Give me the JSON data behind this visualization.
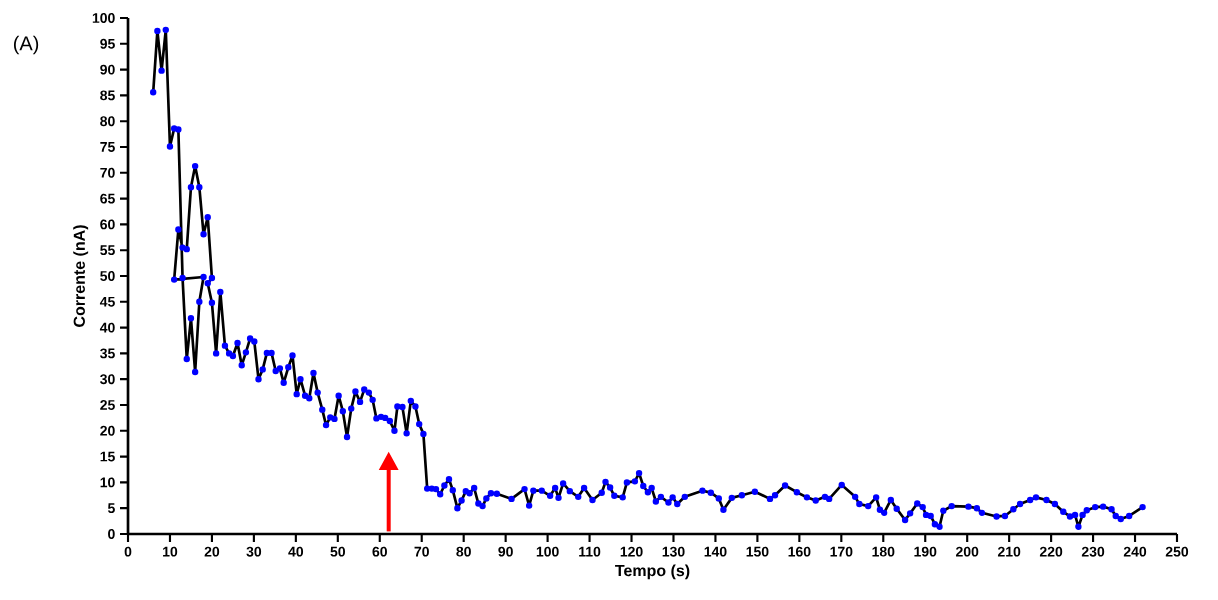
{
  "chart_data": {
    "type": "line",
    "xlabel": "Tempo (s)",
    "ylabel": "Corrente (nA)",
    "annotations": [
      "(A)"
    ],
    "xlim": [
      0,
      250
    ],
    "ylim": [
      0,
      100
    ],
    "xticks": [
      0,
      10,
      20,
      30,
      40,
      50,
      60,
      70,
      80,
      90,
      100,
      110,
      120,
      130,
      140,
      150,
      160,
      170,
      180,
      190,
      200,
      210,
      220,
      230,
      240,
      250
    ],
    "yticks": [
      0,
      5,
      10,
      15,
      20,
      25,
      30,
      35,
      40,
      45,
      50,
      55,
      60,
      65,
      70,
      75,
      80,
      85,
      90,
      95,
      100
    ],
    "marker": "circle",
    "line_style": "solid",
    "series": [
      {
        "color": "#0000ff",
        "x": [
          6,
          7,
          8,
          9,
          10,
          11,
          12,
          13,
          14,
          15,
          16,
          17,
          18,
          11,
          12,
          13,
          14,
          15,
          16,
          17,
          18,
          19,
          20,
          19,
          20,
          21,
          22,
          23.1,
          24.1,
          25,
          26.1,
          27.1,
          28.1,
          29.1,
          30.1,
          31.1,
          32.1,
          33.1,
          34.2,
          35.2,
          36.2,
          37.1,
          38.2,
          39.2,
          40.2,
          41.1,
          42.2,
          43.2,
          44.2,
          45.2,
          46.3,
          47.2,
          48.2,
          49.2,
          50.2,
          51.2,
          52.2,
          53.2,
          54.2,
          55.3,
          56.3,
          57.4,
          58.3,
          59.2,
          60.3,
          61.3,
          62.4,
          63.5,
          64.2,
          65.4,
          66.4,
          67.4,
          68.5,
          69.4,
          70.4,
          71.3,
          72.4,
          73.4,
          74.4,
          75.4,
          76.5,
          77.4,
          78.5,
          79.5,
          80.5,
          81.4,
          82.5,
          83.5,
          84.5,
          85.4,
          86.5,
          87.9,
          91.4,
          94.5,
          95.6,
          96.6,
          98.6,
          100.6,
          101.8,
          102.6,
          103.7,
          105.3,
          107.3,
          108.7,
          110.7,
          112.9,
          113.8,
          114.9,
          115.9,
          117.9,
          118.9,
          120.8,
          121.8,
          122.8,
          123.9,
          124.8,
          125.8,
          127,
          128.8,
          129.8,
          130.9,
          132.7,
          136.9,
          138.9,
          140.8,
          141.9,
          143.9,
          146.3,
          149.4,
          153,
          154.2,
          156.6,
          159.4,
          161.8,
          163.9,
          166.1,
          167.1,
          170.1,
          173.3,
          174.3,
          176.4,
          178.3,
          179.2,
          180.2,
          181.8,
          183.2,
          185.2,
          186.4,
          188.1,
          189.4,
          190.2,
          191.3,
          192.3,
          193.4,
          194.3,
          196.3,
          200.3,
          202.3,
          203.5,
          207,
          209,
          211,
          212.6,
          215,
          216.4,
          218.9,
          220.9,
          222.9,
          224.5,
          225.7,
          226.5,
          227.5,
          228.5,
          230.5,
          232.4,
          234.4,
          235.4,
          236.6,
          238.6,
          241.8
        ],
        "values": [
          85.6,
          97.5,
          89.8,
          97.7,
          75.1,
          78.6,
          78.4,
          49.6,
          33.9,
          41.8,
          31.4,
          45,
          49.8,
          49.3,
          59,
          55.5,
          55.2,
          67.2,
          71.3,
          67.2,
          58.1,
          61.4,
          49.6,
          48.6,
          44.8,
          35,
          46.9,
          36.5,
          35,
          34.5,
          37,
          32.7,
          35.2,
          37.9,
          37.3,
          30,
          31.9,
          35.1,
          35.1,
          31.6,
          32.1,
          29.3,
          32.3,
          34.6,
          27.1,
          30,
          26.8,
          26.3,
          31.2,
          27.4,
          24.1,
          21.1,
          22.6,
          22.3,
          26.8,
          23.8,
          18.8,
          24.3,
          27.6,
          25.6,
          28,
          27.4,
          26,
          22.4,
          22.7,
          22.5,
          21.9,
          20,
          24.7,
          24.6,
          19.5,
          25.8,
          24.7,
          21.3,
          19.4,
          8.8,
          8.8,
          8.7,
          7.7,
          9.4,
          10.6,
          8.5,
          5,
          6.5,
          8.3,
          7.9,
          8.9,
          5.9,
          5.4,
          6.9,
          7.9,
          7.8,
          6.8,
          8.7,
          5.5,
          8.4,
          8.4,
          7.4,
          8.9,
          7,
          9.8,
          8.3,
          7.2,
          8.9,
          6.6,
          8,
          10.1,
          9,
          7.4,
          7.1,
          10,
          10.2,
          11.8,
          9.3,
          8.1,
          8.9,
          6.3,
          7.2,
          6.1,
          7.1,
          5.8,
          7.2,
          8.4,
          8,
          6.9,
          4.7,
          7,
          7.5,
          8.2,
          6.8,
          7.5,
          9.4,
          8.1,
          7.1,
          6.5,
          7.2,
          6.8,
          9.5,
          7.2,
          5.8,
          5.4,
          7.1,
          4.7,
          4.1,
          6.6,
          4.9,
          2.7,
          4,
          5.9,
          5.2,
          3.7,
          3.5,
          1.9,
          1.4,
          4.5,
          5.4,
          5.3,
          5,
          4.1,
          3.4,
          3.5,
          4.8,
          5.8,
          6.6,
          7.1,
          6.6,
          5.8,
          4.3,
          3.4,
          3.7,
          1.4,
          3.7,
          4.6,
          5.2,
          5.3,
          4.8,
          3.5,
          2.9,
          3.5,
          5.2
        ]
      }
    ]
  }
}
